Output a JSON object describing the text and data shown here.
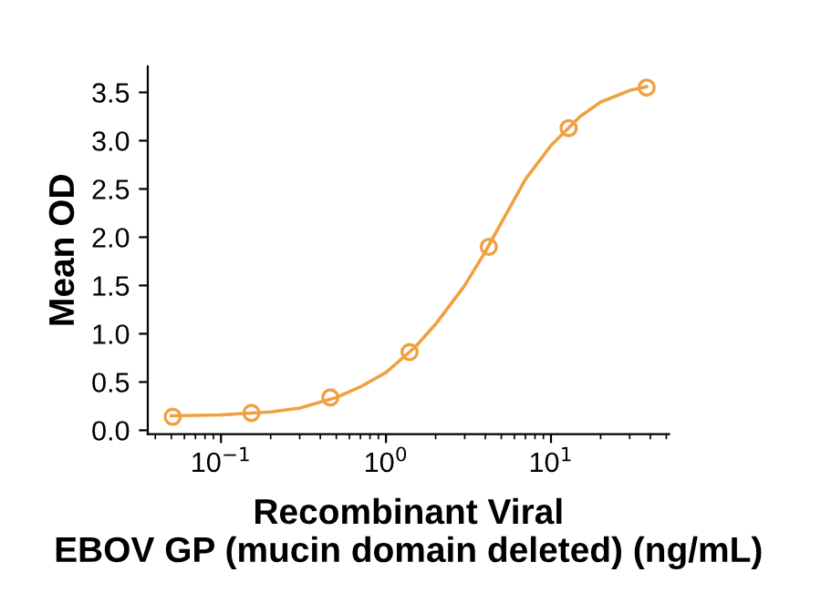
{
  "chart_data": {
    "type": "scatter",
    "xlabel": "Recombinant Viral\nEBOV GP (mucin domain deleted) (ng/mL)",
    "ylabel": "Mean OD",
    "log": "x",
    "xlim": [
      0.036,
      52
    ],
    "ylim": [
      -0.04,
      3.77
    ],
    "xticks": [
      {
        "value": 0.1,
        "label": "10$^{−1}$"
      },
      {
        "value": 1,
        "label": "10$^{0}$"
      },
      {
        "value": 10,
        "label": "10$^{1}$"
      }
    ],
    "yticks": [
      {
        "value": 0,
        "label": "0.0"
      },
      {
        "value": 0.5,
        "label": "0.5"
      },
      {
        "value": 1,
        "label": "1.0"
      },
      {
        "value": 1.5,
        "label": "1.5"
      },
      {
        "value": 2,
        "label": "2.0"
      },
      {
        "value": 2.5,
        "label": "2.5"
      },
      {
        "value": 3,
        "label": "3.0"
      },
      {
        "value": 3.5,
        "label": "3.5"
      }
    ],
    "grid": false,
    "legend": false,
    "series": [
      {
        "marker": "circle",
        "color": "#f0a040",
        "x": [
          0.051,
          0.153,
          0.46,
          1.39,
          4.2,
          12.8,
          38
        ],
        "values": [
          0.14,
          0.18,
          0.34,
          0.81,
          1.9,
          3.13,
          3.55
        ]
      },
      {
        "type": "line",
        "marker": "none",
        "color": "#f0a040",
        "x": [
          0.05,
          0.1,
          0.2,
          0.3,
          0.5,
          0.7,
          1,
          1.5,
          2,
          3,
          4,
          5,
          7,
          10,
          15,
          20,
          30,
          38
        ],
        "values": [
          0.15,
          0.16,
          0.19,
          0.23,
          0.34,
          0.45,
          0.6,
          0.86,
          1.1,
          1.5,
          1.85,
          2.15,
          2.6,
          2.95,
          3.25,
          3.4,
          3.52,
          3.56
        ]
      }
    ]
  }
}
